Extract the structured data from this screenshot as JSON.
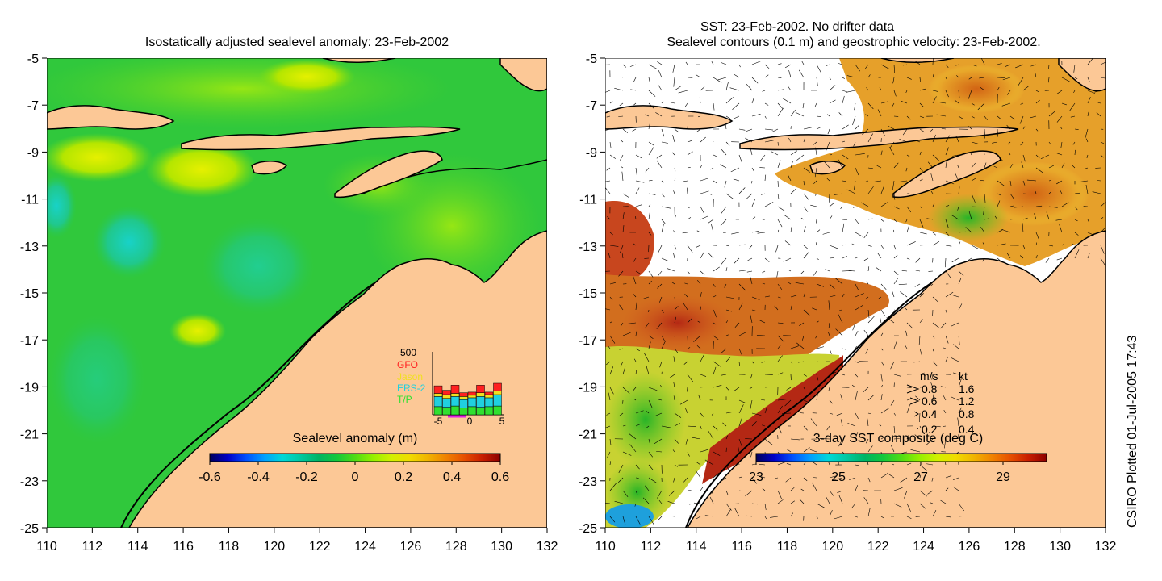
{
  "left_panel": {
    "title": "Isostatically adjusted sealevel anomaly: 23-Feb-2002",
    "colorbar": {
      "label": "Sealevel anomaly (m)",
      "ticks": [
        "-0.6",
        "-0.4",
        "-0.2",
        "0",
        "0.2",
        "0.4",
        "0.6"
      ],
      "colors": [
        "#00005a",
        "#0000c8",
        "#0050ff",
        "#00a0ff",
        "#00d8d8",
        "#00c8a0",
        "#00b464",
        "#14c83c",
        "#50dc14",
        "#96f000",
        "#d2f000",
        "#f0dc00",
        "#f0b400",
        "#f08200",
        "#e65000",
        "#c81e00",
        "#8c0000"
      ]
    },
    "inset": {
      "max_label": "500",
      "legend": [
        {
          "name": "GFO",
          "color": "#ff2020"
        },
        {
          "name": "Jason",
          "color": "#f0e020"
        },
        {
          "name": "ERS-2",
          "color": "#20d0e0"
        },
        {
          "name": "T/P",
          "color": "#30e030"
        }
      ],
      "x_ticks": [
        "-5",
        "0",
        "5"
      ],
      "bars": [
        {
          "tp": 0.13,
          "ers": 0.16,
          "jason": 0.05,
          "gfo": 0.12
        },
        {
          "tp": 0.12,
          "ers": 0.14,
          "jason": 0.06,
          "gfo": 0.07
        },
        {
          "tp": 0.14,
          "ers": 0.15,
          "jason": 0.05,
          "gfo": 0.13
        },
        {
          "tp": 0.11,
          "ers": 0.13,
          "jason": 0.05,
          "gfo": 0.06
        },
        {
          "tp": 0.13,
          "ers": 0.14,
          "jason": 0.04,
          "gfo": 0.05
        },
        {
          "tp": 0.12,
          "ers": 0.17,
          "jason": 0.06,
          "gfo": 0.12
        },
        {
          "tp": 0.13,
          "ers": 0.14,
          "jason": 0.05,
          "gfo": 0.04
        },
        {
          "tp": 0.14,
          "ers": 0.18,
          "jason": 0.06,
          "gfo": 0.12
        }
      ]
    }
  },
  "right_panel": {
    "title_line1": "SST: 23-Feb-2002. No drifter data",
    "title_line2": "Sealevel contours (0.1 m) and geostrophic velocity: 23-Feb-2002.",
    "colorbar": {
      "label": "3-day SST composite (deg C)",
      "ticks": [
        "23",
        "25",
        "27",
        "29"
      ],
      "colors": [
        "#00005a",
        "#0000c8",
        "#0050ff",
        "#00a0ff",
        "#00d8d8",
        "#00c8a0",
        "#00b464",
        "#14c83c",
        "#50dc14",
        "#96f000",
        "#d2f000",
        "#f0dc00",
        "#f0b400",
        "#f08200",
        "#e65000",
        "#c81e00",
        "#8c0000"
      ]
    },
    "velocity_legend": {
      "header_ms": "m/s",
      "header_kt": "kt",
      "rows": [
        {
          "ms": "0.8",
          "kt": "1.6"
        },
        {
          "ms": "0.6",
          "kt": "1.2"
        },
        {
          "ms": "0.4",
          "kt": "0.8"
        },
        {
          "ms": "0.2",
          "kt": "0.4"
        }
      ]
    }
  },
  "axes": {
    "x_ticks": [
      "110",
      "112",
      "114",
      "116",
      "118",
      "120",
      "122",
      "124",
      "126",
      "128",
      "130",
      "132"
    ],
    "y_ticks": [
      "-5",
      "-7",
      "-9",
      "-11",
      "-13",
      "-15",
      "-17",
      "-19",
      "-21",
      "-23",
      "-25"
    ]
  },
  "side_label": "CSIRO Plotted 01-Jul-2005 17:43",
  "colors": {
    "land": "#fcc896",
    "ocean_sla": "#28c828",
    "no_data": "#ffffff"
  }
}
